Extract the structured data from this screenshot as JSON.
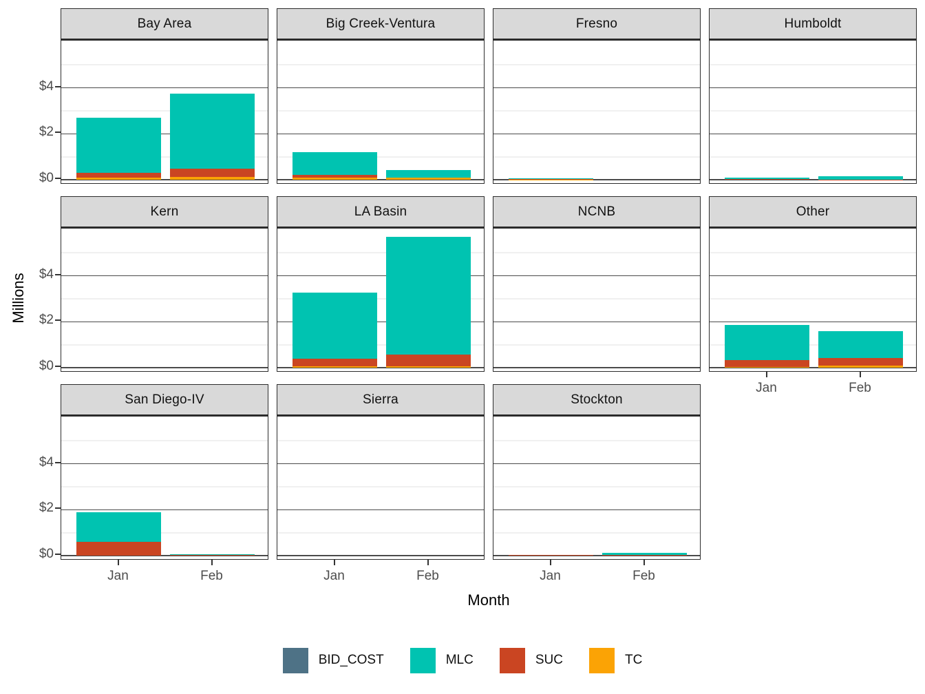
{
  "figure": {
    "y_axis_title": "Millions",
    "x_axis_title": "Month",
    "y_tick_labels": [
      "$0",
      "$2",
      "$4"
    ],
    "x_tick_labels": [
      "Jan",
      "Feb"
    ]
  },
  "legend": {
    "position": "bottom",
    "items": [
      {
        "label": "BID_COST",
        "color": "#4e7286"
      },
      {
        "label": "MLC",
        "color": "#00c3b1"
      },
      {
        "label": "SUC",
        "color": "#ca4522"
      },
      {
        "label": "TC",
        "color": "#fba305"
      }
    ]
  },
  "style": {
    "strip_bg": "#d9d9d9",
    "panel_border": "#2b2b2b",
    "grid_major": "#4a4a4a",
    "grid_minor": "#f0f0f0",
    "tick_label_color": "#4d4d4d"
  },
  "chart_data": {
    "type": "bar",
    "variant": "stacked bars, faceted small multiples (3 rows x 4 cols)",
    "title": "",
    "xlabel": "Month",
    "ylabel": "Millions",
    "units": "$ millions",
    "categories": [
      "Jan",
      "Feb"
    ],
    "ylim": [
      0,
      6
    ],
    "y_major_ticks": [
      0,
      2,
      4
    ],
    "y_minor_gridlines": [
      1,
      3,
      5
    ],
    "grid": "horizontal only; dark major lines, pale minor lines",
    "legend_position": "bottom",
    "stack_order_bottom_to_top": [
      "TC",
      "SUC",
      "MLC",
      "BID_COST"
    ],
    "colors": {
      "BID_COST": "#4e7286",
      "MLC": "#00c3b1",
      "SUC": "#ca4522",
      "TC": "#fba305"
    },
    "facets": [
      {
        "name": "Bay Area",
        "row": 0,
        "col": 0,
        "show_x_axis": false,
        "bars": [
          {
            "month": "Jan",
            "TC": 0.08,
            "SUC": 0.22,
            "MLC": 2.4,
            "BID_COST": 0,
            "total": 2.7
          },
          {
            "month": "Feb",
            "TC": 0.13,
            "SUC": 0.34,
            "MLC": 3.29,
            "BID_COST": 0,
            "total": 3.76
          }
        ]
      },
      {
        "name": "Big Creek-Ventura",
        "row": 0,
        "col": 1,
        "show_x_axis": false,
        "bars": [
          {
            "month": "Jan",
            "TC": 0.08,
            "SUC": 0.12,
            "MLC": 1.0,
            "BID_COST": 0,
            "total": 1.2
          },
          {
            "month": "Feb",
            "TC": 0.08,
            "SUC": 0.01,
            "MLC": 0.32,
            "BID_COST": 0,
            "total": 0.41
          }
        ]
      },
      {
        "name": "Fresno",
        "row": 0,
        "col": 2,
        "show_x_axis": false,
        "bars": [
          {
            "month": "Jan",
            "TC": 0.01,
            "SUC": 0.01,
            "MLC": 0.05,
            "BID_COST": 0,
            "total": 0.07
          },
          {
            "month": "Feb",
            "TC": 0,
            "SUC": 0,
            "MLC": 0,
            "BID_COST": 0,
            "total": 0
          }
        ]
      },
      {
        "name": "Humboldt",
        "row": 0,
        "col": 3,
        "show_x_axis": false,
        "bars": [
          {
            "month": "Jan",
            "TC": 0,
            "SUC": 0.02,
            "MLC": 0.08,
            "BID_COST": 0,
            "total": 0.1
          },
          {
            "month": "Feb",
            "TC": 0,
            "SUC": 0.01,
            "MLC": 0.14,
            "BID_COST": 0,
            "total": 0.15
          }
        ]
      },
      {
        "name": "Kern",
        "row": 1,
        "col": 0,
        "show_x_axis": false,
        "bars": [
          {
            "month": "Jan",
            "TC": 0,
            "SUC": 0,
            "MLC": 0,
            "BID_COST": 0,
            "total": 0
          },
          {
            "month": "Feb",
            "TC": 0,
            "SUC": 0,
            "MLC": 0,
            "BID_COST": 0,
            "total": 0
          }
        ]
      },
      {
        "name": "LA Basin",
        "row": 1,
        "col": 1,
        "show_x_axis": false,
        "bars": [
          {
            "month": "Jan",
            "TC": 0.05,
            "SUC": 0.35,
            "MLC": 2.88,
            "BID_COST": 0,
            "total": 3.28
          },
          {
            "month": "Feb",
            "TC": 0.05,
            "SUC": 0.53,
            "MLC": 5.12,
            "BID_COST": 0,
            "total": 5.7
          }
        ]
      },
      {
        "name": "NCNB",
        "row": 1,
        "col": 2,
        "show_x_axis": false,
        "bars": [
          {
            "month": "Jan",
            "TC": 0,
            "SUC": 0,
            "MLC": 0,
            "BID_COST": 0,
            "total": 0
          },
          {
            "month": "Feb",
            "TC": 0,
            "SUC": 0,
            "MLC": 0,
            "BID_COST": 0,
            "total": 0
          }
        ]
      },
      {
        "name": "Other",
        "row": 1,
        "col": 3,
        "show_x_axis": true,
        "bars": [
          {
            "month": "Jan",
            "TC": 0.04,
            "SUC": 0.3,
            "MLC": 1.53,
            "BID_COST": 0,
            "total": 1.87
          },
          {
            "month": "Feb",
            "TC": 0.09,
            "SUC": 0.33,
            "MLC": 1.18,
            "BID_COST": 0,
            "total": 1.6
          }
        ]
      },
      {
        "name": "San Diego-IV",
        "row": 2,
        "col": 0,
        "show_x_axis": true,
        "bars": [
          {
            "month": "Jan",
            "TC": 0,
            "SUC": 0.6,
            "MLC": 1.3,
            "BID_COST": 0,
            "total": 1.9
          },
          {
            "month": "Feb",
            "TC": 0,
            "SUC": 0.02,
            "MLC": 0.05,
            "BID_COST": 0,
            "total": 0.07
          }
        ]
      },
      {
        "name": "Sierra",
        "row": 2,
        "col": 1,
        "show_x_axis": true,
        "bars": [
          {
            "month": "Jan",
            "TC": 0,
            "SUC": 0,
            "MLC": 0,
            "BID_COST": 0,
            "total": 0
          },
          {
            "month": "Feb",
            "TC": 0,
            "SUC": 0,
            "MLC": 0,
            "BID_COST": 0,
            "total": 0
          }
        ]
      },
      {
        "name": "Stockton",
        "row": 2,
        "col": 2,
        "show_x_axis": true,
        "bars": [
          {
            "month": "Jan",
            "TC": 0,
            "SUC": 0.03,
            "MLC": 0,
            "BID_COST": 0,
            "total": 0.03
          },
          {
            "month": "Feb",
            "TC": 0,
            "SUC": 0.03,
            "MLC": 0.09,
            "BID_COST": 0,
            "total": 0.12
          }
        ]
      }
    ]
  }
}
